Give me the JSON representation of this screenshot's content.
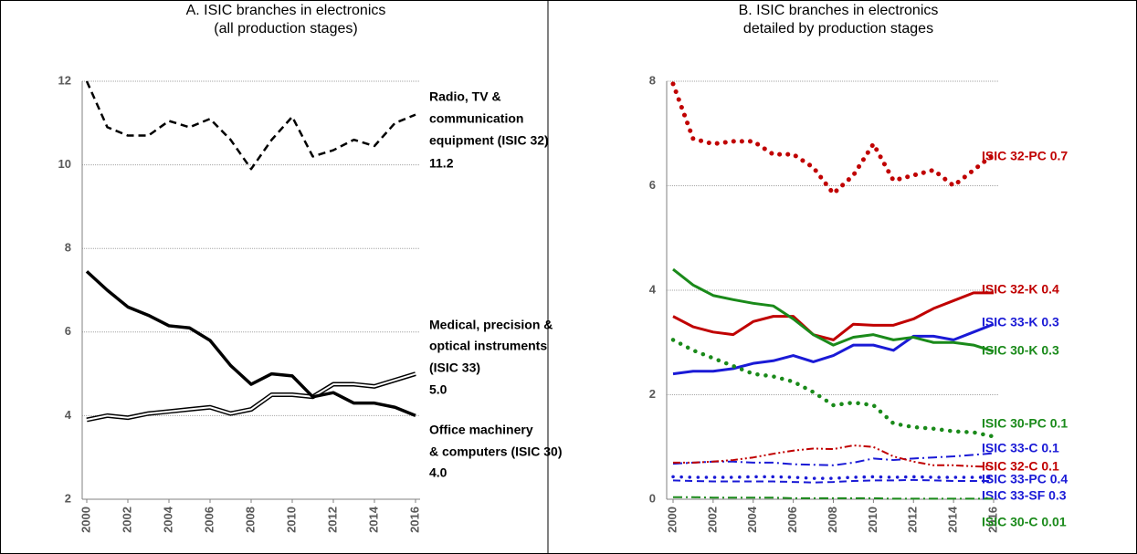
{
  "chart_data": [
    {
      "type": "line",
      "title": [
        "A. ISIC branches in electronics",
        "(all production stages)"
      ],
      "x": [
        2000,
        2001,
        2002,
        2003,
        2004,
        2005,
        2006,
        2007,
        2008,
        2009,
        2010,
        2011,
        2012,
        2013,
        2014,
        2015,
        2016
      ],
      "xlim": [
        2000,
        2016
      ],
      "xticks": [
        2000,
        2002,
        2004,
        2006,
        2008,
        2010,
        2012,
        2014,
        2016
      ],
      "ylim": [
        2,
        12
      ],
      "yticks": [
        2,
        4,
        6,
        8,
        10,
        12
      ],
      "grid": true,
      "series": [
        {
          "name": [
            "Radio, TV &",
            "communication",
            "equipment (ISIC 32)"
          ],
          "color": "#000000",
          "style": "dashed",
          "values": [
            12.0,
            10.9,
            10.7,
            10.7,
            11.05,
            10.9,
            11.1,
            10.6,
            9.9,
            10.6,
            11.15,
            10.2,
            10.35,
            10.6,
            10.45,
            11.0,
            11.2
          ]
        },
        {
          "name": [
            "Medical, precision &",
            "optical instruments",
            "(ISIC 33)"
          ],
          "color": "#000000",
          "style": "double",
          "values": [
            3.9,
            4.0,
            3.95,
            4.05,
            4.1,
            4.15,
            4.2,
            4.05,
            4.15,
            4.5,
            4.5,
            4.45,
            4.75,
            4.75,
            4.7,
            4.85,
            5.0
          ],
          "value_labels": [
            null,
            null,
            null,
            null,
            null,
            null,
            null,
            null,
            null,
            null,
            null,
            null,
            null,
            null,
            null,
            null,
            "5.0"
          ]
        },
        {
          "name": [
            "Office machinery",
            "& computers (ISIC 30)"
          ],
          "color": "#000000",
          "style": "solid",
          "values": [
            7.45,
            7.0,
            6.6,
            6.4,
            6.15,
            6.1,
            5.8,
            5.2,
            4.75,
            5.0,
            4.95,
            4.45,
            4.55,
            4.3,
            4.3,
            4.2,
            4.0
          ],
          "value_labels": [
            null,
            null,
            null,
            null,
            null,
            null,
            null,
            null,
            null,
            null,
            null,
            null,
            null,
            null,
            null,
            null,
            "4.0"
          ]
        }
      ]
    },
    {
      "type": "line",
      "title": [
        "B. ISIC branches in electronics",
        "detailed by production stages"
      ],
      "x": [
        2000,
        2001,
        2002,
        2003,
        2004,
        2005,
        2006,
        2007,
        2008,
        2009,
        2010,
        2011,
        2012,
        2013,
        2014,
        2015,
        2016
      ],
      "xlim": [
        2000,
        2016
      ],
      "xticks": [
        2000,
        2002,
        2004,
        2006,
        2008,
        2010,
        2012,
        2014,
        2016
      ],
      "ylim": [
        0,
        8
      ],
      "yticks": [
        0,
        2,
        4,
        6,
        8
      ],
      "grid": true,
      "series": [
        {
          "name": [
            "ISIC 32-PC 0.7"
          ],
          "color": "#c00000",
          "style": "dotted",
          "values": [
            7.95,
            6.9,
            6.8,
            6.85,
            6.85,
            6.6,
            6.6,
            6.35,
            5.85,
            6.2,
            6.8,
            6.1,
            6.2,
            6.3,
            6.0,
            6.3,
            6.6
          ]
        },
        {
          "name": [
            "ISIC 32-K 0.4"
          ],
          "color": "#c00000",
          "style": "solid",
          "values": [
            3.5,
            3.3,
            3.2,
            3.15,
            3.4,
            3.5,
            3.5,
            3.15,
            3.05,
            3.35,
            3.33,
            3.33,
            3.45,
            3.65,
            3.8,
            3.95,
            3.95
          ]
        },
        {
          "name": [
            "ISIC 33-K 0.3"
          ],
          "color": "#1a1ad6",
          "style": "solid",
          "values": [
            2.4,
            2.45,
            2.45,
            2.5,
            2.6,
            2.65,
            2.75,
            2.63,
            2.75,
            2.95,
            2.95,
            2.85,
            3.12,
            3.12,
            3.05,
            3.2,
            3.35
          ]
        },
        {
          "name": [
            "ISIC 30-K 0.3"
          ],
          "color": "#1a8a1a",
          "style": "solid",
          "values": [
            4.4,
            4.1,
            3.9,
            3.82,
            3.75,
            3.7,
            3.45,
            3.15,
            2.95,
            3.1,
            3.15,
            3.05,
            3.1,
            3.0,
            3.0,
            2.95,
            2.83
          ]
        },
        {
          "name": [
            "ISIC 30-PC 0.1"
          ],
          "color": "#1a8a1a",
          "style": "dotted",
          "values": [
            3.05,
            2.85,
            2.7,
            2.55,
            2.4,
            2.35,
            2.25,
            2.05,
            1.8,
            1.85,
            1.8,
            1.45,
            1.38,
            1.35,
            1.3,
            1.28,
            1.2
          ]
        },
        {
          "name": [
            "ISIC 33-C 0.1"
          ],
          "color": "#1a1ad6",
          "style": "dashdot",
          "values": [
            0.68,
            0.7,
            0.72,
            0.72,
            0.7,
            0.7,
            0.67,
            0.66,
            0.65,
            0.7,
            0.78,
            0.75,
            0.78,
            0.8,
            0.82,
            0.85,
            0.88
          ]
        },
        {
          "name": [
            "ISIC 32-C 0.1"
          ],
          "color": "#c00000",
          "style": "dashdotdot",
          "values": [
            0.7,
            0.7,
            0.72,
            0.75,
            0.8,
            0.87,
            0.93,
            0.97,
            0.96,
            1.03,
            1.0,
            0.82,
            0.72,
            0.65,
            0.65,
            0.63,
            0.62
          ]
        },
        {
          "name": [
            "ISIC 33-PC 0.4"
          ],
          "color": "#1a1ad6",
          "style": "dotted",
          "values": [
            0.43,
            0.42,
            0.42,
            0.42,
            0.43,
            0.43,
            0.42,
            0.4,
            0.4,
            0.42,
            0.43,
            0.42,
            0.43,
            0.42,
            0.42,
            0.42,
            0.42
          ]
        },
        {
          "name": [
            "ISIC 33-SF 0.3"
          ],
          "color": "#1a1ad6",
          "style": "dashed",
          "values": [
            0.36,
            0.35,
            0.34,
            0.34,
            0.34,
            0.34,
            0.33,
            0.32,
            0.33,
            0.35,
            0.36,
            0.36,
            0.37,
            0.36,
            0.35,
            0.35,
            0.35
          ]
        },
        {
          "name": [
            "ISIC 30-C 0.01"
          ],
          "color": "#1a8a1a",
          "style": "dashdot",
          "values": [
            0.04,
            0.04,
            0.03,
            0.03,
            0.03,
            0.03,
            0.02,
            0.02,
            0.02,
            0.02,
            0.02,
            0.01,
            0.01,
            0.01,
            0.01,
            0.01,
            0.01
          ]
        }
      ]
    }
  ]
}
